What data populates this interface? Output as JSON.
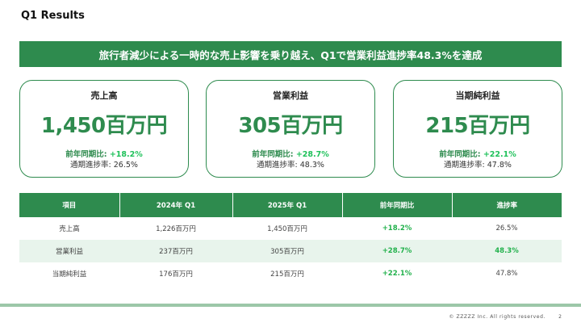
{
  "page": {
    "title": "Q1 Results"
  },
  "banner": {
    "text": "旅行者減少による一時的な売上影響を乗り越え、Q1で営業利益進捗率48.3%を達成"
  },
  "kpis": [
    {
      "label": "売上高",
      "value": "1,450百万円",
      "yoy_label": "前年同期比:",
      "yoy_value": "+18.2%",
      "progress": "通期進捗率: 26.5%"
    },
    {
      "label": "営業利益",
      "value": "305百万円",
      "yoy_label": "前年同期比:",
      "yoy_value": "+28.7%",
      "progress": "通期進捗率: 48.3%"
    },
    {
      "label": "当期純利益",
      "value": "215百万円",
      "yoy_label": "前年同期比:",
      "yoy_value": "+22.1%",
      "progress": "通期進捗率: 47.8%"
    }
  ],
  "table": {
    "headers": [
      "項目",
      "2024年 Q1",
      "2025年 Q1",
      "前年同期比",
      "進捗率"
    ],
    "rows": [
      [
        "売上高",
        "1,226百万円",
        "1,450百万円",
        "+18.2%",
        "26.5%"
      ],
      [
        "営業利益",
        "237百万円",
        "305百万円",
        "+28.7%",
        "48.3%"
      ],
      [
        "当期純利益",
        "176百万円",
        "215百万円",
        "+22.1%",
        "47.8%"
      ]
    ]
  },
  "footer": {
    "copyright": "© ZZZZZ Inc. All rights reserved.",
    "page_number": "2"
  },
  "colors": {
    "brand_green": "#2e8b4e",
    "positive_green": "#22b14c",
    "row_highlight": "#e8f4ec"
  }
}
